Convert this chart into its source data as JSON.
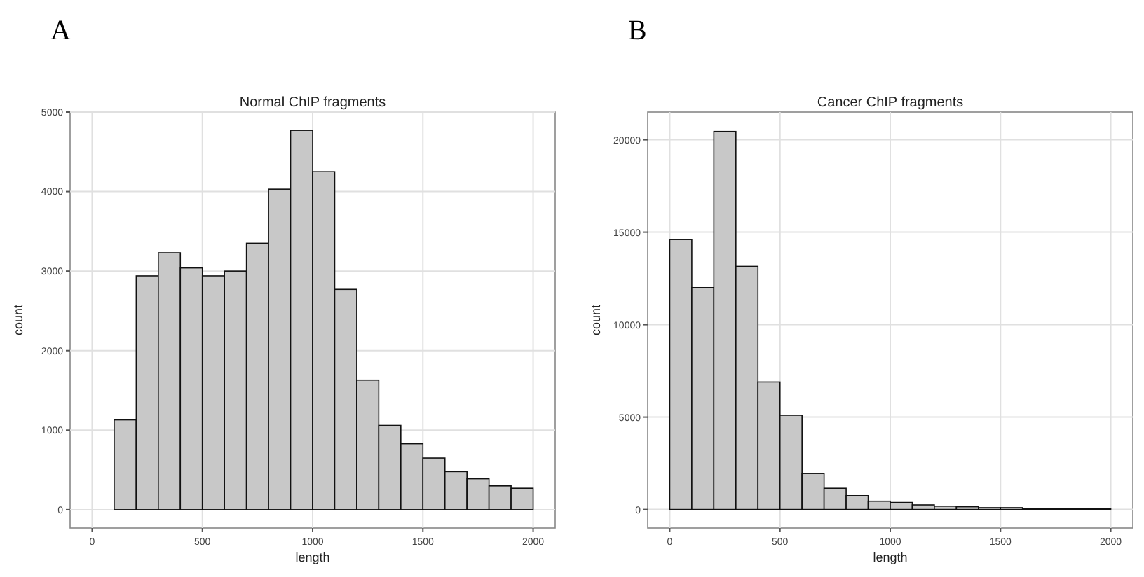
{
  "chart_data": [
    {
      "type": "histogram",
      "title": "Normal ChIP fragments",
      "xlabel": "length",
      "ylabel": "count",
      "annotations": [
        "A"
      ],
      "color": "#c8c8c8",
      "bins": [
        0,
        100,
        200,
        300,
        400,
        500,
        600,
        700,
        800,
        900,
        1000,
        1100,
        1200,
        1300,
        1400,
        1500,
        1600,
        1700,
        1800,
        1900,
        2000
      ],
      "values": [
        0,
        1130,
        2940,
        3230,
        3040,
        2940,
        3000,
        3350,
        4030,
        4770,
        4250,
        2770,
        1630,
        1060,
        830,
        650,
        480,
        390,
        300,
        270
      ],
      "xlim": [
        -100,
        2100
      ],
      "xticks": [
        0,
        500,
        1000,
        1500,
        2000
      ],
      "ylim": [
        -230,
        5000
      ],
      "yticks": [
        0,
        1000,
        2000,
        3000,
        4000,
        5000
      ],
      "grid": true
    },
    {
      "type": "histogram",
      "title": "Cancer ChIP fragments",
      "xlabel": "length",
      "ylabel": "count",
      "annotations": [
        "B"
      ],
      "color": "#c8c8c8",
      "bins": [
        0,
        100,
        200,
        300,
        400,
        500,
        600,
        700,
        800,
        900,
        1000,
        1100,
        1200,
        1300,
        1400,
        1500,
        1600,
        1700,
        1800,
        1900,
        2000
      ],
      "values": [
        14600,
        12000,
        20450,
        13150,
        6900,
        5100,
        1950,
        1150,
        750,
        450,
        380,
        250,
        180,
        150,
        100,
        100,
        50,
        50,
        50,
        50
      ],
      "xlim": [
        -100,
        2100
      ],
      "xticks": [
        0,
        500,
        1000,
        1500,
        2000
      ],
      "ylim": [
        -1000,
        21500
      ],
      "yticks": [
        0,
        5000,
        10000,
        15000,
        20000
      ],
      "grid": true
    }
  ]
}
